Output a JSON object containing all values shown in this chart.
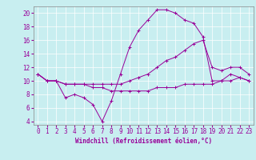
{
  "xlabel": "Windchill (Refroidissement éolien,°C)",
  "background_color": "#c8eef0",
  "line_color": "#990099",
  "grid_color": "#ffffff",
  "xlim": [
    -0.5,
    23.5
  ],
  "ylim": [
    3.5,
    21.0
  ],
  "yticks": [
    4,
    6,
    8,
    10,
    12,
    14,
    16,
    18,
    20
  ],
  "xticks": [
    0,
    1,
    2,
    3,
    4,
    5,
    6,
    7,
    8,
    9,
    10,
    11,
    12,
    13,
    14,
    15,
    16,
    17,
    18,
    19,
    20,
    21,
    22,
    23
  ],
  "line1_x": [
    0,
    1,
    2,
    3,
    4,
    5,
    6,
    7,
    8,
    9,
    10,
    11,
    12,
    13,
    14,
    15,
    16,
    17,
    18,
    19,
    20,
    21,
    22,
    23
  ],
  "line1_y": [
    11.0,
    10.0,
    10.0,
    7.5,
    8.0,
    7.5,
    6.5,
    4.0,
    7.0,
    11.0,
    15.0,
    17.5,
    19.0,
    20.5,
    20.5,
    20.0,
    19.0,
    18.5,
    16.5,
    10.0,
    10.0,
    11.0,
    10.5,
    10.0
  ],
  "line2_x": [
    0,
    1,
    2,
    3,
    4,
    5,
    6,
    7,
    8,
    9,
    10,
    11,
    12,
    13,
    14,
    15,
    16,
    17,
    18,
    19,
    20,
    21,
    22,
    23
  ],
  "line2_y": [
    11.0,
    10.0,
    10.0,
    9.5,
    9.5,
    9.5,
    9.5,
    9.5,
    9.5,
    9.5,
    10.0,
    10.5,
    11.0,
    12.0,
    13.0,
    13.5,
    14.5,
    15.5,
    16.0,
    12.0,
    11.5,
    12.0,
    12.0,
    11.0
  ],
  "line3_x": [
    0,
    1,
    2,
    3,
    4,
    5,
    6,
    7,
    8,
    9,
    10,
    11,
    12,
    13,
    14,
    15,
    16,
    17,
    18,
    19,
    20,
    21,
    22,
    23
  ],
  "line3_y": [
    11.0,
    10.0,
    10.0,
    9.5,
    9.5,
    9.5,
    9.0,
    9.0,
    8.5,
    8.5,
    8.5,
    8.5,
    8.5,
    9.0,
    9.0,
    9.0,
    9.5,
    9.5,
    9.5,
    9.5,
    10.0,
    10.0,
    10.5,
    10.0
  ],
  "tick_fontsize": 5.5,
  "xlabel_fontsize": 5.5
}
